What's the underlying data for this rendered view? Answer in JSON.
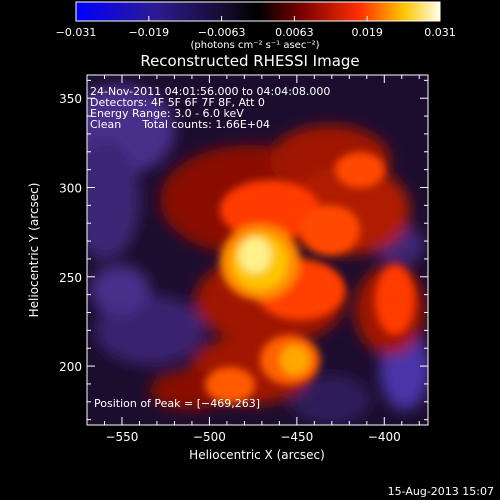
{
  "colorbar": {
    "tick_labels": [
      "−0.031",
      "−0.019",
      "−0.0063",
      "0.0063",
      "0.019",
      "0.031"
    ],
    "unit_label": "(photons cm⁻² s⁻¹ asec⁻²)",
    "colors": [
      "#0000ff",
      "#2a1a80",
      "#000000",
      "#7a0000",
      "#ff4400",
      "#ffd000",
      "#ffffe0"
    ]
  },
  "title": "Reconstructed RHESSI Image",
  "info": {
    "time_range": "24-Nov-2011 04:01:56.000 to 04:04:08.000",
    "detectors": "Detectors: 4F 5F 6F 7F 8F, Att 0",
    "energy": "Energy Range: 3.0 - 6.0 keV",
    "method": "Clean      Total counts: 1.66E+04"
  },
  "peak": "Position of Peak = [−469,263]",
  "footer": "15-Aug-2013 15:07",
  "chart_data": {
    "type": "heatmap",
    "title": "Reconstructed RHESSI Image",
    "xlabel": "Heliocentric X (arcsec)",
    "ylabel": "Heliocentric Y (arcsec)",
    "xlim": [
      -570,
      -375
    ],
    "ylim": [
      167,
      363
    ],
    "x_ticks": [
      -550,
      -500,
      -450,
      -400
    ],
    "y_ticks": [
      200,
      250,
      300,
      350
    ],
    "x_tick_labels": [
      "−550",
      "−500",
      "−450",
      "−400"
    ],
    "y_tick_labels": [
      "200",
      "250",
      "300",
      "350"
    ],
    "colorbar_range": [
      -0.031,
      0.031
    ],
    "peak_position": [
      -469,
      263
    ]
  }
}
